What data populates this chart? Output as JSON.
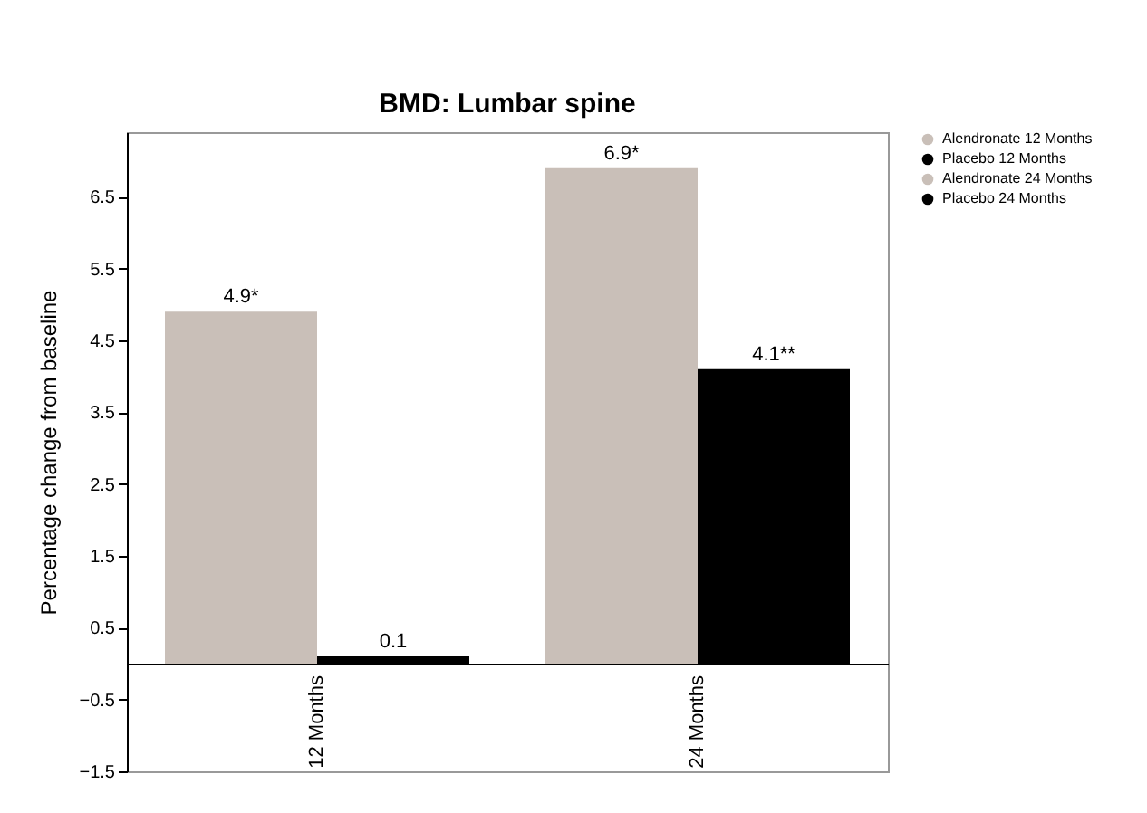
{
  "chart_data": {
    "type": "bar",
    "title": "BMD: Lumbar spine",
    "ylabel": "Percentage change from baseline",
    "categories": [
      "12 Months",
      "24 Months"
    ],
    "series": [
      {
        "name": "Alendronate 12 Months",
        "color": "#c9bfb8",
        "values": [
          4.9,
          null
        ],
        "value_labels": [
          "4.9*",
          null
        ]
      },
      {
        "name": "Placebo 12 Months",
        "color": "#000000",
        "values": [
          0.1,
          null
        ],
        "value_labels": [
          "0.1",
          null
        ]
      },
      {
        "name": "Alendronate 24 Months",
        "color": "#c9bfb8",
        "values": [
          null,
          6.9
        ],
        "value_labels": [
          null,
          "6.9*"
        ]
      },
      {
        "name": "Placebo 24 Months",
        "color": "#000000",
        "values": [
          null,
          4.1
        ],
        "value_labels": [
          null,
          "4.1**"
        ]
      }
    ],
    "ylim": [
      -1.5,
      7.4
    ],
    "yticks": [
      -1.5,
      -0.5,
      0.5,
      1.5,
      2.5,
      3.5,
      4.5,
      5.5,
      6.5
    ],
    "legend": "top right"
  }
}
